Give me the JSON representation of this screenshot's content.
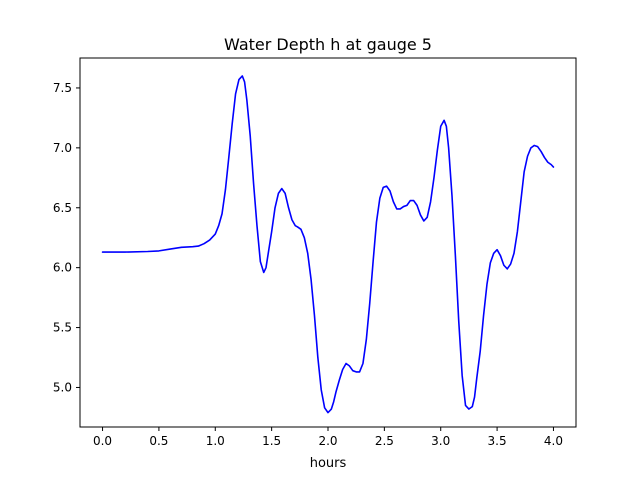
{
  "chart_data": {
    "type": "line",
    "title": "Water Depth h at gauge 5",
    "xlabel": "hours",
    "ylabel": "",
    "xlim": [
      -0.2,
      4.2
    ],
    "ylim": [
      4.67,
      7.75
    ],
    "xticks": [
      0.0,
      0.5,
      1.0,
      1.5,
      2.0,
      2.5,
      3.0,
      3.5,
      4.0
    ],
    "xtick_labels": [
      "0.0",
      "0.5",
      "1.0",
      "1.5",
      "2.0",
      "2.5",
      "3.0",
      "3.5",
      "4.0"
    ],
    "yticks": [
      5.0,
      5.5,
      6.0,
      6.5,
      7.0,
      7.5
    ],
    "ytick_labels": [
      "5.0",
      "5.5",
      "6.0",
      "6.5",
      "7.0",
      "7.5"
    ],
    "grid": false,
    "series": [
      {
        "color": "#0000ff",
        "x": [
          0.0,
          0.2,
          0.4,
          0.5,
          0.6,
          0.7,
          0.8,
          0.85,
          0.9,
          0.95,
          1.0,
          1.03,
          1.06,
          1.09,
          1.12,
          1.15,
          1.18,
          1.21,
          1.24,
          1.26,
          1.28,
          1.31,
          1.34,
          1.37,
          1.4,
          1.43,
          1.45,
          1.47,
          1.5,
          1.53,
          1.56,
          1.59,
          1.62,
          1.65,
          1.68,
          1.71,
          1.73,
          1.76,
          1.79,
          1.82,
          1.85,
          1.88,
          1.91,
          1.94,
          1.97,
          2.0,
          2.03,
          2.05,
          2.07,
          2.1,
          2.13,
          2.16,
          2.19,
          2.22,
          2.25,
          2.28,
          2.31,
          2.34,
          2.37,
          2.4,
          2.43,
          2.46,
          2.49,
          2.52,
          2.55,
          2.58,
          2.61,
          2.64,
          2.67,
          2.7,
          2.73,
          2.76,
          2.79,
          2.82,
          2.85,
          2.88,
          2.91,
          2.94,
          2.97,
          3.0,
          3.03,
          3.05,
          3.07,
          3.1,
          3.13,
          3.16,
          3.19,
          3.22,
          3.25,
          3.28,
          3.3,
          3.32,
          3.35,
          3.38,
          3.41,
          3.44,
          3.47,
          3.5,
          3.53,
          3.56,
          3.59,
          3.62,
          3.65,
          3.68,
          3.71,
          3.74,
          3.77,
          3.8,
          3.83,
          3.86,
          3.89,
          3.92,
          3.95,
          3.98,
          4.0
        ],
        "values": [
          6.13,
          6.13,
          6.135,
          6.14,
          6.155,
          6.17,
          6.175,
          6.18,
          6.2,
          6.23,
          6.28,
          6.35,
          6.45,
          6.65,
          6.92,
          7.2,
          7.45,
          7.57,
          7.6,
          7.55,
          7.4,
          7.1,
          6.7,
          6.35,
          6.05,
          5.96,
          6.0,
          6.12,
          6.3,
          6.5,
          6.62,
          6.66,
          6.62,
          6.5,
          6.4,
          6.35,
          6.34,
          6.32,
          6.25,
          6.12,
          5.9,
          5.6,
          5.25,
          4.98,
          4.83,
          4.79,
          4.82,
          4.88,
          4.96,
          5.06,
          5.15,
          5.2,
          5.18,
          5.14,
          5.13,
          5.13,
          5.2,
          5.4,
          5.7,
          6.05,
          6.38,
          6.58,
          6.67,
          6.68,
          6.64,
          6.55,
          6.49,
          6.49,
          6.51,
          6.52,
          6.56,
          6.56,
          6.52,
          6.44,
          6.39,
          6.42,
          6.55,
          6.75,
          6.98,
          7.18,
          7.23,
          7.18,
          7.0,
          6.6,
          6.1,
          5.55,
          5.1,
          4.85,
          4.82,
          4.84,
          4.92,
          5.08,
          5.3,
          5.6,
          5.86,
          6.04,
          6.12,
          6.15,
          6.1,
          6.02,
          5.99,
          6.03,
          6.12,
          6.3,
          6.55,
          6.8,
          6.93,
          7.0,
          7.02,
          7.01,
          6.97,
          6.92,
          6.88,
          6.86,
          6.84
        ]
      }
    ]
  }
}
